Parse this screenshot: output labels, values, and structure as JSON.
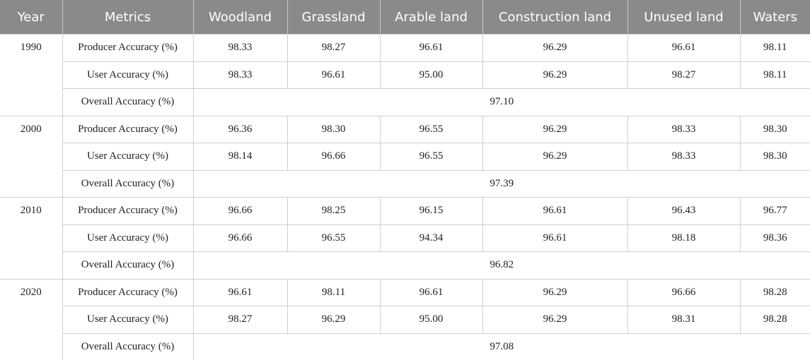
{
  "table": {
    "header": [
      "Year",
      "Metrics",
      "Woodland",
      "Grassland",
      "Arable land",
      "Construction land",
      "Unused land",
      "Waters"
    ],
    "groups": [
      {
        "year": "1990",
        "rows": [
          {
            "metric": "Producer Accuracy (%)",
            "values": [
              "98.33",
              "98.27",
              "96.61",
              "96.29",
              "96.61",
              "98.11"
            ]
          },
          {
            "metric": "User Accuracy (%)",
            "values": [
              "98.33",
              "96.61",
              "95.00",
              "96.29",
              "98.27",
              "98.11"
            ]
          }
        ],
        "overall": {
          "metric": "Overall Accuracy (%)",
          "value": "97.10"
        }
      },
      {
        "year": "2000",
        "rows": [
          {
            "metric": "Producer Accuracy (%)",
            "values": [
              "96.36",
              "98.30",
              "96.55",
              "96.29",
              "98.33",
              "98.30"
            ]
          },
          {
            "metric": "User Accuracy (%)",
            "values": [
              "98.14",
              "96.66",
              "96.55",
              "96.29",
              "98.33",
              "98.30"
            ]
          }
        ],
        "overall": {
          "metric": "Overall Accuracy (%)",
          "value": "97.39"
        }
      },
      {
        "year": "2010",
        "rows": [
          {
            "metric": "Producer Accuracy (%)",
            "values": [
              "96.66",
              "98.25",
              "96.15",
              "96.61",
              "96.43",
              "96.77"
            ]
          },
          {
            "metric": "User Accuracy (%)",
            "values": [
              "96.66",
              "96.55",
              "94.34",
              "96.61",
              "98.18",
              "98.36"
            ]
          }
        ],
        "overall": {
          "metric": "Overall Accuracy (%)",
          "value": "96.82"
        }
      },
      {
        "year": "2020",
        "rows": [
          {
            "metric": "Producer Accuracy (%)",
            "values": [
              "96.61",
              "98.11",
              "96.61",
              "96.29",
              "96.66",
              "98.28"
            ]
          },
          {
            "metric": "User Accuracy (%)",
            "values": [
              "98.27",
              "96.29",
              "95.00",
              "96.29",
              "98.31",
              "98.28"
            ]
          }
        ],
        "overall": {
          "metric": "Overall Accuracy (%)",
          "value": "97.08"
        }
      }
    ]
  }
}
